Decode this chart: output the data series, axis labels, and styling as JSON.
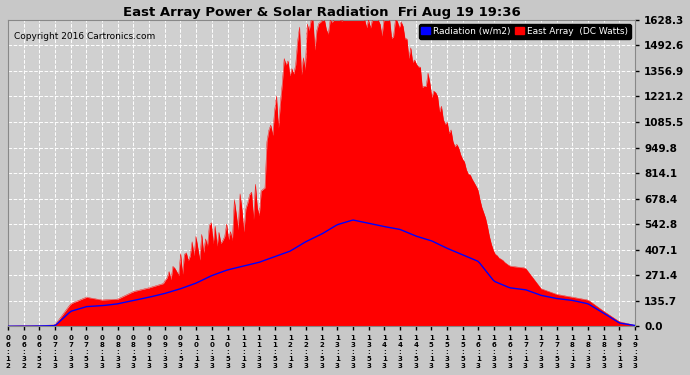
{
  "title": "East Array Power & Solar Radiation  Fri Aug 19 19:36",
  "copyright": "Copyright 2016 Cartronics.com",
  "legend_radiation": "Radiation (w/m2)",
  "legend_east_array": "East Array  (DC Watts)",
  "yticks": [
    0.0,
    135.7,
    271.4,
    407.1,
    542.8,
    678.4,
    814.1,
    949.8,
    1085.5,
    1221.2,
    1356.9,
    1492.6,
    1628.3
  ],
  "ymax": 1628.3,
  "bg_color": "#c8c8c8",
  "plot_bg_color": "#d0d0d0",
  "grid_color": "#ffffff",
  "red_fill_color": "#ff0000",
  "blue_line_color": "#0000ff",
  "title_color": "#000000",
  "xtick_labels": [
    "06:12",
    "06:32",
    "06:52",
    "07:13",
    "07:33",
    "07:53",
    "08:13",
    "08:33",
    "08:53",
    "09:13",
    "09:33",
    "09:53",
    "10:13",
    "10:33",
    "10:53",
    "11:13",
    "11:33",
    "11:53",
    "12:13",
    "12:33",
    "12:53",
    "13:13",
    "13:33",
    "13:53",
    "14:13",
    "14:33",
    "14:53",
    "15:13",
    "15:33",
    "15:53",
    "16:13",
    "16:33",
    "16:53",
    "17:13",
    "17:33",
    "17:53",
    "18:13",
    "18:33",
    "18:53",
    "19:13",
    "19:33"
  ],
  "east_array": [
    2,
    3,
    5,
    8,
    120,
    155,
    140,
    145,
    185,
    205,
    230,
    270,
    320,
    390,
    440,
    490,
    510,
    950,
    1280,
    1350,
    1480,
    1580,
    1628,
    1550,
    1520,
    1480,
    1300,
    1200,
    1050,
    850,
    700,
    380,
    320,
    310,
    200,
    170,
    155,
    140,
    80,
    25,
    5
  ],
  "radiation": [
    1,
    1,
    2,
    4,
    80,
    105,
    110,
    120,
    138,
    155,
    175,
    200,
    230,
    270,
    300,
    320,
    340,
    370,
    400,
    450,
    490,
    540,
    565,
    548,
    530,
    515,
    480,
    455,
    415,
    380,
    345,
    240,
    205,
    195,
    165,
    148,
    138,
    120,
    70,
    18,
    5
  ]
}
